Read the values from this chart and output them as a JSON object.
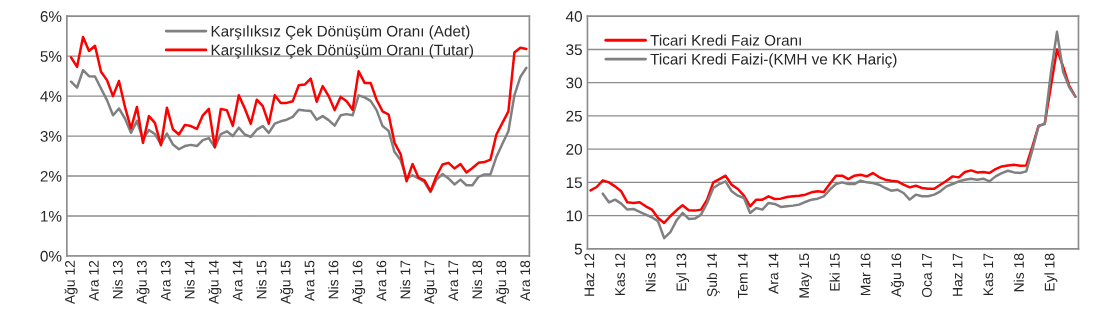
{
  "chart_data": [
    {
      "type": "line",
      "categories": [
        "Ağu 12",
        null,
        null,
        null,
        "Ara 12",
        null,
        null,
        null,
        "Nis 13",
        null,
        null,
        null,
        "Ağu 13",
        null,
        null,
        null,
        "Ara 13",
        null,
        null,
        null,
        "Nis 14",
        null,
        null,
        null,
        "Ağu 14",
        null,
        null,
        null,
        "Ara 14",
        null,
        null,
        null,
        "Nis 15",
        null,
        null,
        null,
        "Ağu 15",
        null,
        null,
        null,
        "Ara 15",
        null,
        null,
        null,
        "Nis 16",
        null,
        null,
        null,
        "Ağu 16",
        null,
        null,
        null,
        "Ara 16",
        null,
        null,
        null,
        "Nis 17",
        null,
        null,
        null,
        "Ağu 17",
        null,
        null,
        null,
        "Ara 17",
        null,
        null,
        null,
        "Nis 18",
        null,
        null,
        null,
        "Ağu 18",
        null,
        null,
        null,
        "Ara 18"
      ],
      "ylim": [
        0,
        6
      ],
      "yticks": [
        {
          "value": 0,
          "label": "0%"
        },
        {
          "value": 1,
          "label": "1%"
        },
        {
          "value": 2,
          "label": "2%"
        },
        {
          "value": 3,
          "label": "3%"
        },
        {
          "value": 4,
          "label": "4%"
        },
        {
          "value": 5,
          "label": "5%"
        },
        {
          "value": 6,
          "label": "6%"
        }
      ],
      "grid": "y",
      "legend": "top right",
      "line_style": "solid",
      "marker": "none",
      "series": [
        {
          "name": "Karşılıksız Çek Dönüşüm Oranı (Adet)",
          "color": "#808080",
          "values": [
            4.36,
            4.21,
            4.65,
            4.5,
            4.49,
            4.19,
            3.9,
            3.52,
            3.69,
            3.44,
            3.08,
            3.38,
            2.92,
            3.15,
            3.05,
            2.8,
            3.06,
            2.79,
            2.67,
            2.75,
            2.78,
            2.75,
            2.9,
            2.95,
            2.72,
            3.05,
            3.12,
            3.0,
            3.21,
            3.04,
            2.98,
            3.16,
            3.25,
            3.08,
            3.31,
            3.37,
            3.41,
            3.48,
            3.66,
            3.64,
            3.63,
            3.41,
            3.5,
            3.4,
            3.26,
            3.52,
            3.55,
            3.52,
            4.02,
            3.97,
            3.88,
            3.65,
            3.25,
            3.13,
            2.6,
            2.4,
            1.94,
            2.02,
            1.94,
            1.85,
            1.6,
            1.91,
            2.05,
            1.94,
            1.79,
            1.91,
            1.77,
            1.77,
            1.98,
            2.04,
            2.04,
            2.48,
            2.81,
            3.12,
            4.02,
            4.48,
            4.71
          ]
        },
        {
          "name": "Karşılıksız Çek Dönüşüm Oranı (Tutar)",
          "color": "#ff0000",
          "values": [
            4.97,
            4.73,
            5.48,
            5.13,
            5.26,
            4.61,
            4.4,
            4.0,
            4.38,
            3.73,
            3.19,
            3.73,
            2.83,
            3.5,
            3.33,
            2.77,
            3.71,
            3.17,
            3.04,
            3.28,
            3.25,
            3.18,
            3.52,
            3.68,
            2.72,
            3.68,
            3.65,
            3.26,
            4.02,
            3.69,
            3.31,
            3.91,
            3.75,
            3.31,
            4.02,
            3.83,
            3.83,
            3.87,
            4.27,
            4.29,
            4.44,
            3.86,
            4.25,
            4.0,
            3.65,
            3.98,
            3.87,
            3.66,
            4.62,
            4.33,
            4.33,
            3.91,
            3.62,
            3.54,
            2.83,
            2.55,
            1.87,
            2.3,
            1.96,
            1.89,
            1.62,
            2.0,
            2.29,
            2.33,
            2.19,
            2.3,
            2.09,
            2.2,
            2.33,
            2.35,
            2.41,
            3.04,
            3.33,
            3.62,
            5.09,
            5.21,
            5.18
          ]
        }
      ]
    },
    {
      "type": "line",
      "categories": [
        "Haz 12",
        null,
        null,
        null,
        null,
        "Kas 12",
        null,
        null,
        null,
        null,
        "Nis 13",
        null,
        null,
        null,
        null,
        "Eyl 13",
        null,
        null,
        null,
        null,
        "Şub 14",
        null,
        null,
        null,
        null,
        "Tem 14",
        null,
        null,
        null,
        null,
        "Ara 14",
        null,
        null,
        null,
        null,
        "May 15",
        null,
        null,
        null,
        null,
        "Eki 15",
        null,
        null,
        null,
        null,
        "Mar 16",
        null,
        null,
        null,
        null,
        "Ağu 16",
        null,
        null,
        null,
        null,
        "Oca 17",
        null,
        null,
        null,
        null,
        "Haz 17",
        null,
        null,
        null,
        null,
        "Kas 17",
        null,
        null,
        null,
        null,
        "Nis 18",
        null,
        null,
        null,
        null,
        "Eyl 18",
        null,
        null,
        null,
        null
      ],
      "ylim": [
        5,
        40
      ],
      "yticks": [
        5,
        10,
        15,
        20,
        25,
        30,
        35,
        40
      ],
      "grid": "y",
      "legend": "top left",
      "line_style": "solid",
      "marker": "none",
      "series": [
        {
          "name": "Ticari Kredi Faiz Oranı",
          "color": "#ff0000",
          "values": [
            13.8,
            14.3,
            15.3,
            15.0,
            14.4,
            13.65,
            12.0,
            11.9,
            12.0,
            11.4,
            10.9,
            9.65,
            8.9,
            9.9,
            10.8,
            11.55,
            10.8,
            10.75,
            10.9,
            12.4,
            15.0,
            15.5,
            16.0,
            14.65,
            14.0,
            13.0,
            11.4,
            12.4,
            12.4,
            12.9,
            12.5,
            12.55,
            12.8,
            12.9,
            13.0,
            13.15,
            13.5,
            13.65,
            13.55,
            14.8,
            16.0,
            16.0,
            15.5,
            16.0,
            16.15,
            15.9,
            16.4,
            15.8,
            15.4,
            15.25,
            15.15,
            14.65,
            14.25,
            14.5,
            14.15,
            14.05,
            14.05,
            14.65,
            15.25,
            15.9,
            15.75,
            16.55,
            16.8,
            16.5,
            16.55,
            16.4,
            17.0,
            17.4,
            17.55,
            17.65,
            17.5,
            17.55,
            20.4,
            23.5,
            23.8,
            29.4,
            35.0,
            32.4,
            29.5,
            27.9
          ]
        },
        {
          "name": "Ticari Kredi Faizi-(KMH ve KK Hariç)",
          "color": "#808080",
          "values": [
            null,
            null,
            13.3,
            12.0,
            12.4,
            11.8,
            10.9,
            11.0,
            10.55,
            10.15,
            9.75,
            9.15,
            6.6,
            7.5,
            9.25,
            10.4,
            9.5,
            9.55,
            10.15,
            11.9,
            14.15,
            14.75,
            15.15,
            13.65,
            13.0,
            12.65,
            10.4,
            11.15,
            10.9,
            11.9,
            11.75,
            11.3,
            11.4,
            11.5,
            11.65,
            12.05,
            12.4,
            12.55,
            12.9,
            13.9,
            14.75,
            15.0,
            14.75,
            14.75,
            15.25,
            15.0,
            14.9,
            14.65,
            14.15,
            13.75,
            13.9,
            13.4,
            12.4,
            13.15,
            12.9,
            12.9,
            13.15,
            13.65,
            14.4,
            14.75,
            15.15,
            15.4,
            15.55,
            15.4,
            15.55,
            15.15,
            15.9,
            16.4,
            16.75,
            16.5,
            16.4,
            16.65,
            19.9,
            23.5,
            23.8,
            31.4,
            37.65,
            31.65,
            29.3,
            27.9
          ]
        }
      ]
    }
  ]
}
